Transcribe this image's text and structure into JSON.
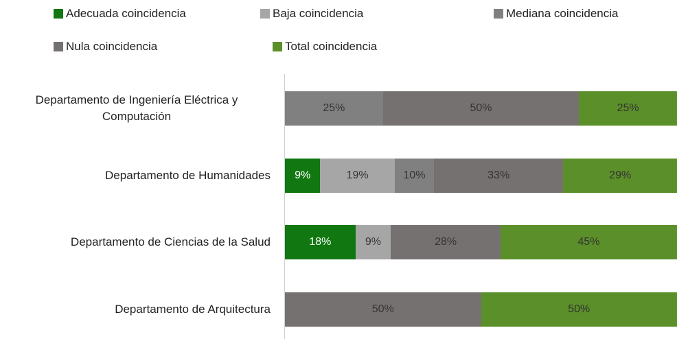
{
  "chart_data": {
    "type": "stacked-bar-horizontal",
    "categories": [
      "Departamento de Ingeniería Eléctrica y Computación",
      "Departamento de Humanidades",
      "Departamento de Ciencias de la Salud",
      "Departamento de Arquitectura"
    ],
    "series": [
      {
        "name": "Adecuada coincidencia",
        "color": "#117711",
        "values": [
          null,
          9,
          18,
          null
        ],
        "value_labels": [
          null,
          "9%",
          "18%",
          null
        ]
      },
      {
        "name": "Baja coincidencia",
        "color": "#a6a6a6",
        "values": [
          null,
          19,
          9,
          null
        ],
        "value_labels": [
          null,
          "19%",
          "9%",
          null
        ]
      },
      {
        "name": "Mediana coincidencia",
        "color": "#808080",
        "values": [
          25,
          10,
          null,
          null
        ],
        "value_labels": [
          "25%",
          "10%",
          null,
          null
        ]
      },
      {
        "name": "Nula coincidencia",
        "color": "#767171",
        "values": [
          50,
          33,
          28,
          50
        ],
        "value_labels": [
          "50%",
          "33%",
          "28%",
          "50%"
        ]
      },
      {
        "name": "Total coincidencia",
        "color": "#5b8f29",
        "values": [
          25,
          29,
          45,
          50
        ],
        "value_labels": [
          "25%",
          "29%",
          "45%",
          "50%"
        ]
      }
    ],
    "xlim": [
      0,
      100
    ]
  }
}
